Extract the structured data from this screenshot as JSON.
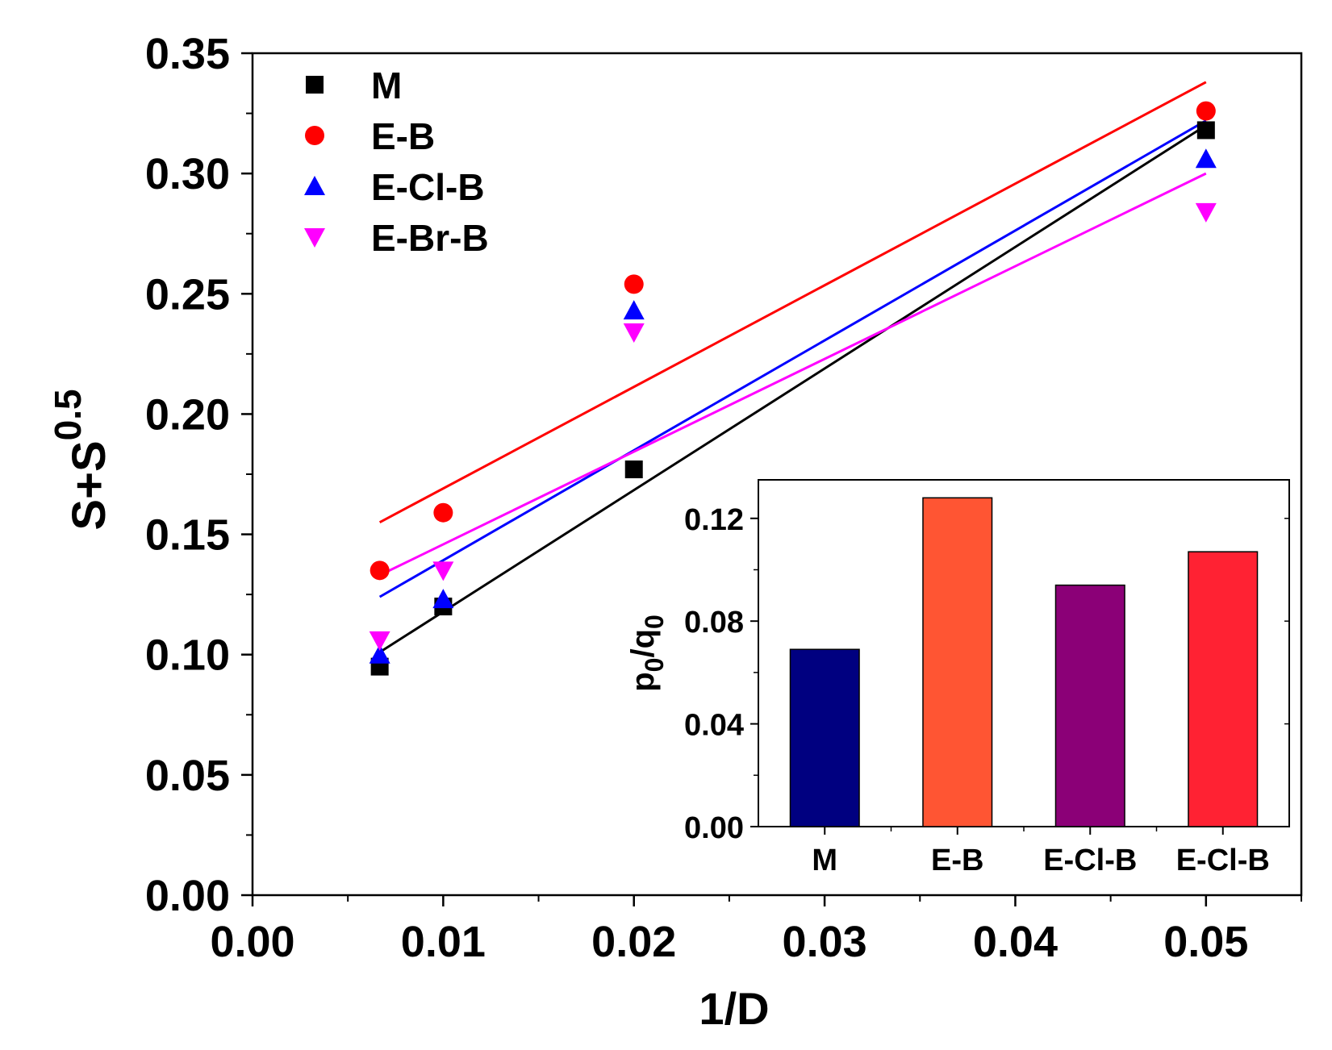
{
  "chart_data": [
    {
      "type": "scatter",
      "xlabel": "1/D",
      "ylabel": {
        "base": "S+S",
        "sup": "0.5"
      },
      "xlim": [
        0,
        0.055
      ],
      "ylim": [
        0,
        0.35
      ],
      "xticks": [
        0.0,
        0.01,
        0.02,
        0.03,
        0.04,
        0.05
      ],
      "xtick_labels": [
        "0.00",
        "0.01",
        "0.02",
        "0.03",
        "0.04",
        "0.05"
      ],
      "yticks": [
        0.0,
        0.05,
        0.1,
        0.15,
        0.2,
        0.25,
        0.3,
        0.35
      ],
      "ytick_labels": [
        "0.00",
        "0.05",
        "0.10",
        "0.15",
        "0.20",
        "0.25",
        "0.30",
        "0.35"
      ],
      "legend_position": "top-left",
      "grid": false,
      "series": [
        {
          "name": "M",
          "color": "#000000",
          "marker": "square",
          "x": [
            0.00667,
            0.01,
            0.02,
            0.05
          ],
          "y": [
            0.095,
            0.12,
            0.177,
            0.318
          ],
          "fit": {
            "x": [
              0.00667,
              0.05
            ],
            "y": [
              0.101,
              0.32
            ]
          }
        },
        {
          "name": "E-B",
          "color": "#ff0000",
          "marker": "circle",
          "x": [
            0.00667,
            0.01,
            0.02,
            0.05
          ],
          "y": [
            0.135,
            0.159,
            0.254,
            0.326
          ],
          "fit": {
            "x": [
              0.00667,
              0.05
            ],
            "y": [
              0.155,
              0.338
            ]
          }
        },
        {
          "name": "E-Cl-B",
          "color": "#0000ff",
          "marker": "triangle-up",
          "x": [
            0.00667,
            0.01,
            0.02,
            0.05
          ],
          "y": [
            0.1,
            0.123,
            0.243,
            0.306
          ],
          "fit": {
            "x": [
              0.00667,
              0.05
            ],
            "y": [
              0.124,
              0.322
            ]
          }
        },
        {
          "name": "E-Br-B",
          "color": "#ff00ff",
          "marker": "triangle-down",
          "x": [
            0.00667,
            0.01,
            0.02,
            0.05
          ],
          "y": [
            0.106,
            0.135,
            0.234,
            0.284
          ],
          "fit": {
            "x": [
              0.00667,
              0.05
            ],
            "y": [
              0.133,
              0.3
            ]
          }
        }
      ]
    },
    {
      "type": "bar",
      "ylabel": {
        "p": "p",
        "sub1": "0",
        "slash": "/q",
        "sub2": "0"
      },
      "ylim": [
        0,
        0.135
      ],
      "yticks": [
        0.0,
        0.04,
        0.08,
        0.12
      ],
      "ytick_labels": [
        "0.00",
        "0.04",
        "0.08",
        "0.12"
      ],
      "categories": [
        "M",
        "E-B",
        "E-Cl-B",
        "E-Cl-B"
      ],
      "values": [
        0.069,
        0.128,
        0.094,
        0.107
      ],
      "colors": [
        "#000080",
        "#ff5533",
        "#8b0077",
        "#ff2233"
      ]
    }
  ]
}
